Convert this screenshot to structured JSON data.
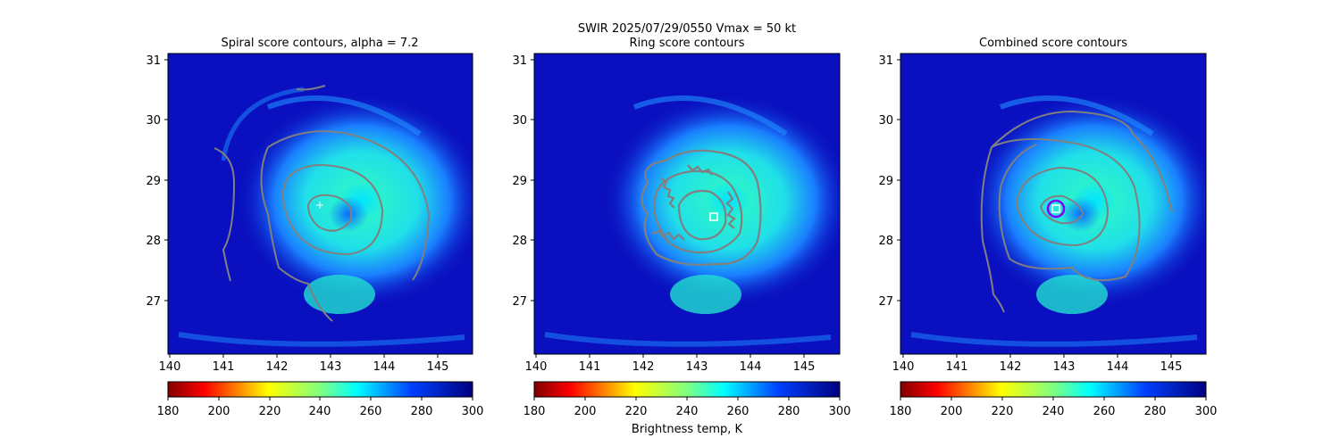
{
  "suptitle": "SWIR  2025/07/29/0550    Vmax = 50 kt",
  "colorbar_label": "Brightness temp, K",
  "colormap": [
    "#800000",
    "#ff0000",
    "#ff8000",
    "#ffff00",
    "#80ff80",
    "#00ffff",
    "#0080ff",
    "#0000ff",
    "#000080"
  ],
  "contour_color": "#808080",
  "chart_data": [
    {
      "type": "heatmap",
      "title": "Spiral score contours, alpha =  7.2",
      "xlim": [
        140,
        145.7
      ],
      "ylim": [
        26.1,
        31.1
      ],
      "xticks": [
        "140",
        "141",
        "142",
        "143",
        "144",
        "145"
      ],
      "yticks": [
        "27",
        "28",
        "29",
        "30",
        "31"
      ],
      "colorbar": {
        "range": [
          180,
          300
        ],
        "ticks": [
          "180",
          "200",
          "220",
          "240",
          "260",
          "280",
          "300"
        ]
      },
      "center_marker": {
        "symbol": "plus",
        "lon": 142.8,
        "lat": 28.6
      }
    },
    {
      "type": "heatmap",
      "title": "Ring score contours",
      "xlim": [
        140,
        145.7
      ],
      "ylim": [
        26.1,
        31.1
      ],
      "xticks": [
        "140",
        "141",
        "142",
        "143",
        "144",
        "145"
      ],
      "yticks": [
        "27",
        "28",
        "29",
        "30",
        "31"
      ],
      "colorbar": {
        "range": [
          180,
          300
        ],
        "ticks": [
          "180",
          "200",
          "220",
          "240",
          "260",
          "280",
          "300"
        ]
      },
      "center_marker": {
        "symbol": "square",
        "lon": 143.3,
        "lat": 28.4
      }
    },
    {
      "type": "heatmap",
      "title": "Combined score contours",
      "xlim": [
        140,
        145.7
      ],
      "ylim": [
        26.1,
        31.1
      ],
      "xticks": [
        "140",
        "141",
        "142",
        "143",
        "144",
        "145"
      ],
      "yticks": [
        "27",
        "28",
        "29",
        "30",
        "31"
      ],
      "colorbar": {
        "range": [
          180,
          300
        ],
        "ticks": [
          "180",
          "200",
          "220",
          "240",
          "260",
          "280",
          "300"
        ]
      },
      "center_marker": {
        "symbol": "circle",
        "lon": 142.85,
        "lat": 28.55
      }
    }
  ]
}
